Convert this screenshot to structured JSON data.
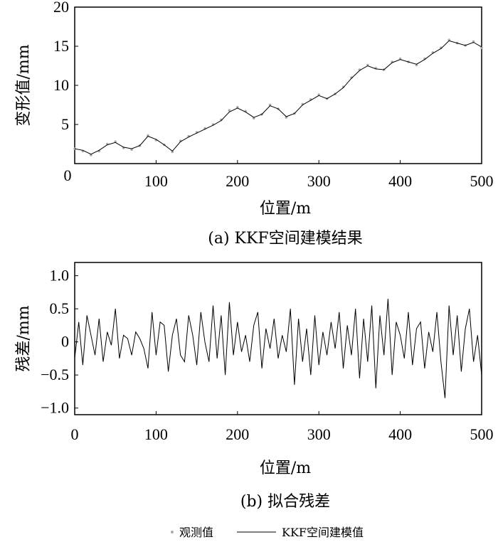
{
  "chart_data": [
    {
      "type": "line",
      "caption": "(a) KKF空间建模结果",
      "xlabel": "位置/m",
      "ylabel": "变形值/mm",
      "xlim": [
        0,
        500
      ],
      "ylim": [
        0,
        20
      ],
      "xticks": [
        0,
        100,
        200,
        300,
        400,
        500
      ],
      "yticks": [
        5,
        10,
        15,
        20
      ],
      "x_origin_label": "0",
      "grid": false,
      "series": [
        {
          "name": "观测值",
          "style": "scatter",
          "color": "#aaaaaa",
          "x": [
            0,
            10,
            20,
            30,
            40,
            50,
            60,
            70,
            80,
            90,
            100,
            110,
            120,
            130,
            140,
            150,
            160,
            170,
            180,
            190,
            200,
            210,
            220,
            230,
            240,
            250,
            260,
            270,
            280,
            290,
            300,
            310,
            320,
            330,
            340,
            350,
            360,
            370,
            380,
            390,
            400,
            410,
            420,
            430,
            440,
            450,
            460,
            470,
            480,
            490,
            500
          ],
          "y": [
            1.9,
            1.6,
            1.1,
            1.6,
            2.5,
            2.8,
            2.0,
            1.8,
            2.3,
            3.6,
            3.0,
            2.4,
            1.5,
            2.9,
            3.5,
            4.0,
            4.5,
            5.0,
            5.6,
            6.8,
            7.2,
            6.7,
            5.8,
            6.3,
            7.5,
            7.0,
            5.9,
            6.4,
            7.6,
            8.2,
            8.8,
            8.3,
            8.9,
            9.8,
            11.0,
            12.0,
            12.6,
            12.2,
            12.0,
            13.0,
            13.4,
            13.0,
            12.6,
            13.4,
            14.2,
            14.8,
            15.8,
            15.4,
            15.1,
            15.6,
            14.8
          ]
        },
        {
          "name": "KKF空间建模值",
          "style": "line",
          "color": "#000000",
          "x": [
            0,
            10,
            20,
            30,
            40,
            50,
            60,
            70,
            80,
            90,
            100,
            110,
            120,
            130,
            140,
            150,
            160,
            170,
            180,
            190,
            200,
            210,
            220,
            230,
            240,
            250,
            260,
            270,
            280,
            290,
            300,
            310,
            320,
            330,
            340,
            350,
            360,
            370,
            380,
            390,
            400,
            410,
            420,
            430,
            440,
            450,
            460,
            470,
            480,
            490,
            500
          ],
          "y": [
            1.9,
            1.7,
            1.2,
            1.7,
            2.4,
            2.7,
            2.1,
            1.9,
            2.3,
            3.5,
            3.1,
            2.4,
            1.6,
            2.8,
            3.4,
            3.9,
            4.4,
            4.9,
            5.5,
            6.6,
            7.1,
            6.6,
            5.9,
            6.3,
            7.4,
            7.0,
            6.0,
            6.4,
            7.5,
            8.1,
            8.7,
            8.3,
            8.9,
            9.7,
            10.9,
            11.9,
            12.5,
            12.1,
            12.0,
            12.9,
            13.3,
            13.0,
            12.7,
            13.3,
            14.1,
            14.7,
            15.7,
            15.4,
            15.1,
            15.5,
            14.9
          ]
        }
      ]
    },
    {
      "type": "line",
      "caption": "(b) 拟合残差",
      "xlabel": "位置/m",
      "ylabel": "残差/mm",
      "xlim": [
        0,
        500
      ],
      "ylim": [
        -1.1,
        1.2
      ],
      "xticks": [
        0,
        100,
        200,
        300,
        400,
        500
      ],
      "yticks": [
        -1.0,
        -0.5,
        0,
        0.5,
        1.0
      ],
      "ytick_labels": [
        "−1.0",
        "−0.5",
        "0",
        "0.5",
        "1.0"
      ],
      "grid": false,
      "series": [
        {
          "name": "",
          "color": "#000000",
          "x": [
            0,
            5,
            10,
            15,
            20,
            25,
            30,
            35,
            40,
            45,
            50,
            55,
            60,
            65,
            70,
            75,
            80,
            85,
            90,
            95,
            100,
            105,
            110,
            115,
            120,
            125,
            130,
            135,
            140,
            145,
            150,
            155,
            160,
            165,
            170,
            175,
            180,
            185,
            190,
            195,
            200,
            205,
            210,
            215,
            220,
            225,
            230,
            235,
            240,
            245,
            250,
            255,
            260,
            265,
            270,
            275,
            280,
            285,
            290,
            295,
            300,
            305,
            310,
            315,
            320,
            325,
            330,
            335,
            340,
            345,
            350,
            355,
            360,
            365,
            370,
            375,
            380,
            385,
            390,
            395,
            400,
            405,
            410,
            415,
            420,
            425,
            430,
            435,
            440,
            445,
            450,
            455,
            460,
            465,
            470,
            475,
            480,
            485,
            490,
            495,
            500
          ],
          "y": [
            -0.25,
            0.3,
            -0.35,
            0.4,
            0.1,
            -0.2,
            0.35,
            -0.3,
            0.15,
            -0.05,
            0.5,
            -0.25,
            0.1,
            0.05,
            -0.2,
            0.15,
            0.05,
            -0.1,
            -0.4,
            0.45,
            -0.2,
            0.3,
            0.25,
            -0.45,
            0.1,
            0.35,
            -0.2,
            -0.3,
            0.4,
            0.1,
            -0.35,
            0.45,
            0.0,
            -0.3,
            0.55,
            -0.25,
            0.4,
            -0.5,
            0.6,
            -0.2,
            0.3,
            -0.15,
            0.1,
            -0.3,
            0.25,
            0.45,
            -0.4,
            0.2,
            -0.1,
            0.35,
            -0.25,
            0.1,
            -0.15,
            0.5,
            -0.65,
            0.35,
            -0.3,
            0.2,
            -0.5,
            0.4,
            -0.35,
            0.15,
            -0.2,
            0.3,
            -0.1,
            0.45,
            -0.4,
            0.25,
            -0.2,
            0.5,
            -0.55,
            0.35,
            -0.3,
            0.55,
            -0.7,
            0.4,
            -0.2,
            0.65,
            -0.5,
            0.3,
            0.1,
            -0.25,
            0.45,
            -0.35,
            0.2,
            0.3,
            -0.4,
            0.15,
            -0.15,
            0.45,
            -0.3,
            -0.85,
            0.55,
            -0.2,
            0.4,
            -0.45,
            0.2,
            0.5,
            -0.3,
            0.1,
            -0.5
          ]
        }
      ]
    }
  ],
  "legend": {
    "placement": "bottom",
    "items": [
      {
        "label": "观测值",
        "marker": "dot",
        "color": "#aaaaaa"
      },
      {
        "label": "KKF空间建模值",
        "marker": "line",
        "color": "#000000"
      }
    ]
  }
}
